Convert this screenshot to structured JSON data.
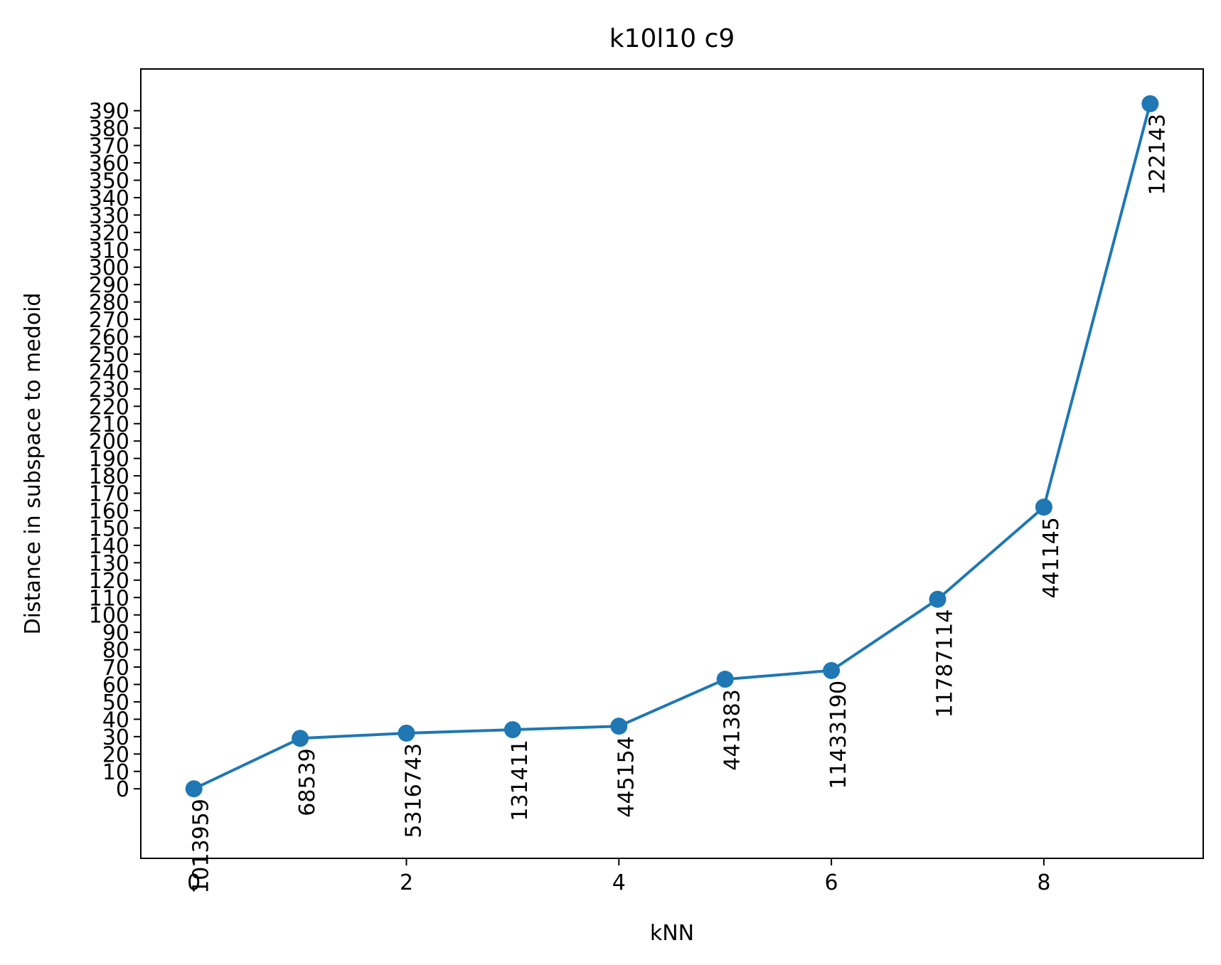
{
  "chart_data": {
    "type": "line",
    "title": "k10l10 c9",
    "xlabel": "kNN",
    "ylabel": "Distance in subspace to medoid",
    "x": [
      0,
      1,
      2,
      3,
      4,
      5,
      6,
      7,
      8,
      9
    ],
    "series": [
      {
        "values": [
          0,
          29,
          32,
          34,
          36,
          63,
          68,
          109,
          162,
          394
        ],
        "point_labels": [
          "1013959",
          "68539",
          "5316743",
          "131411",
          "445154",
          "441383",
          "11433190",
          "11787114",
          "441145",
          "122143"
        ],
        "color": "#1f77b4"
      }
    ],
    "xlim": [
      -0.5,
      9.5
    ],
    "ylim": [
      -40,
      414
    ],
    "xticks": [
      "0",
      "2",
      "4",
      "6",
      "8"
    ],
    "yticks": [
      "0",
      "10",
      "20",
      "30",
      "40",
      "50",
      "60",
      "70",
      "80",
      "90",
      "100",
      "110",
      "120",
      "130",
      "140",
      "150",
      "160",
      "170",
      "180",
      "190",
      "200",
      "210",
      "220",
      "230",
      "240",
      "250",
      "260",
      "270",
      "280",
      "290",
      "300",
      "310",
      "320",
      "330",
      "340",
      "350",
      "360",
      "370",
      "380",
      "390"
    ],
    "grid": false,
    "legend": "none"
  }
}
